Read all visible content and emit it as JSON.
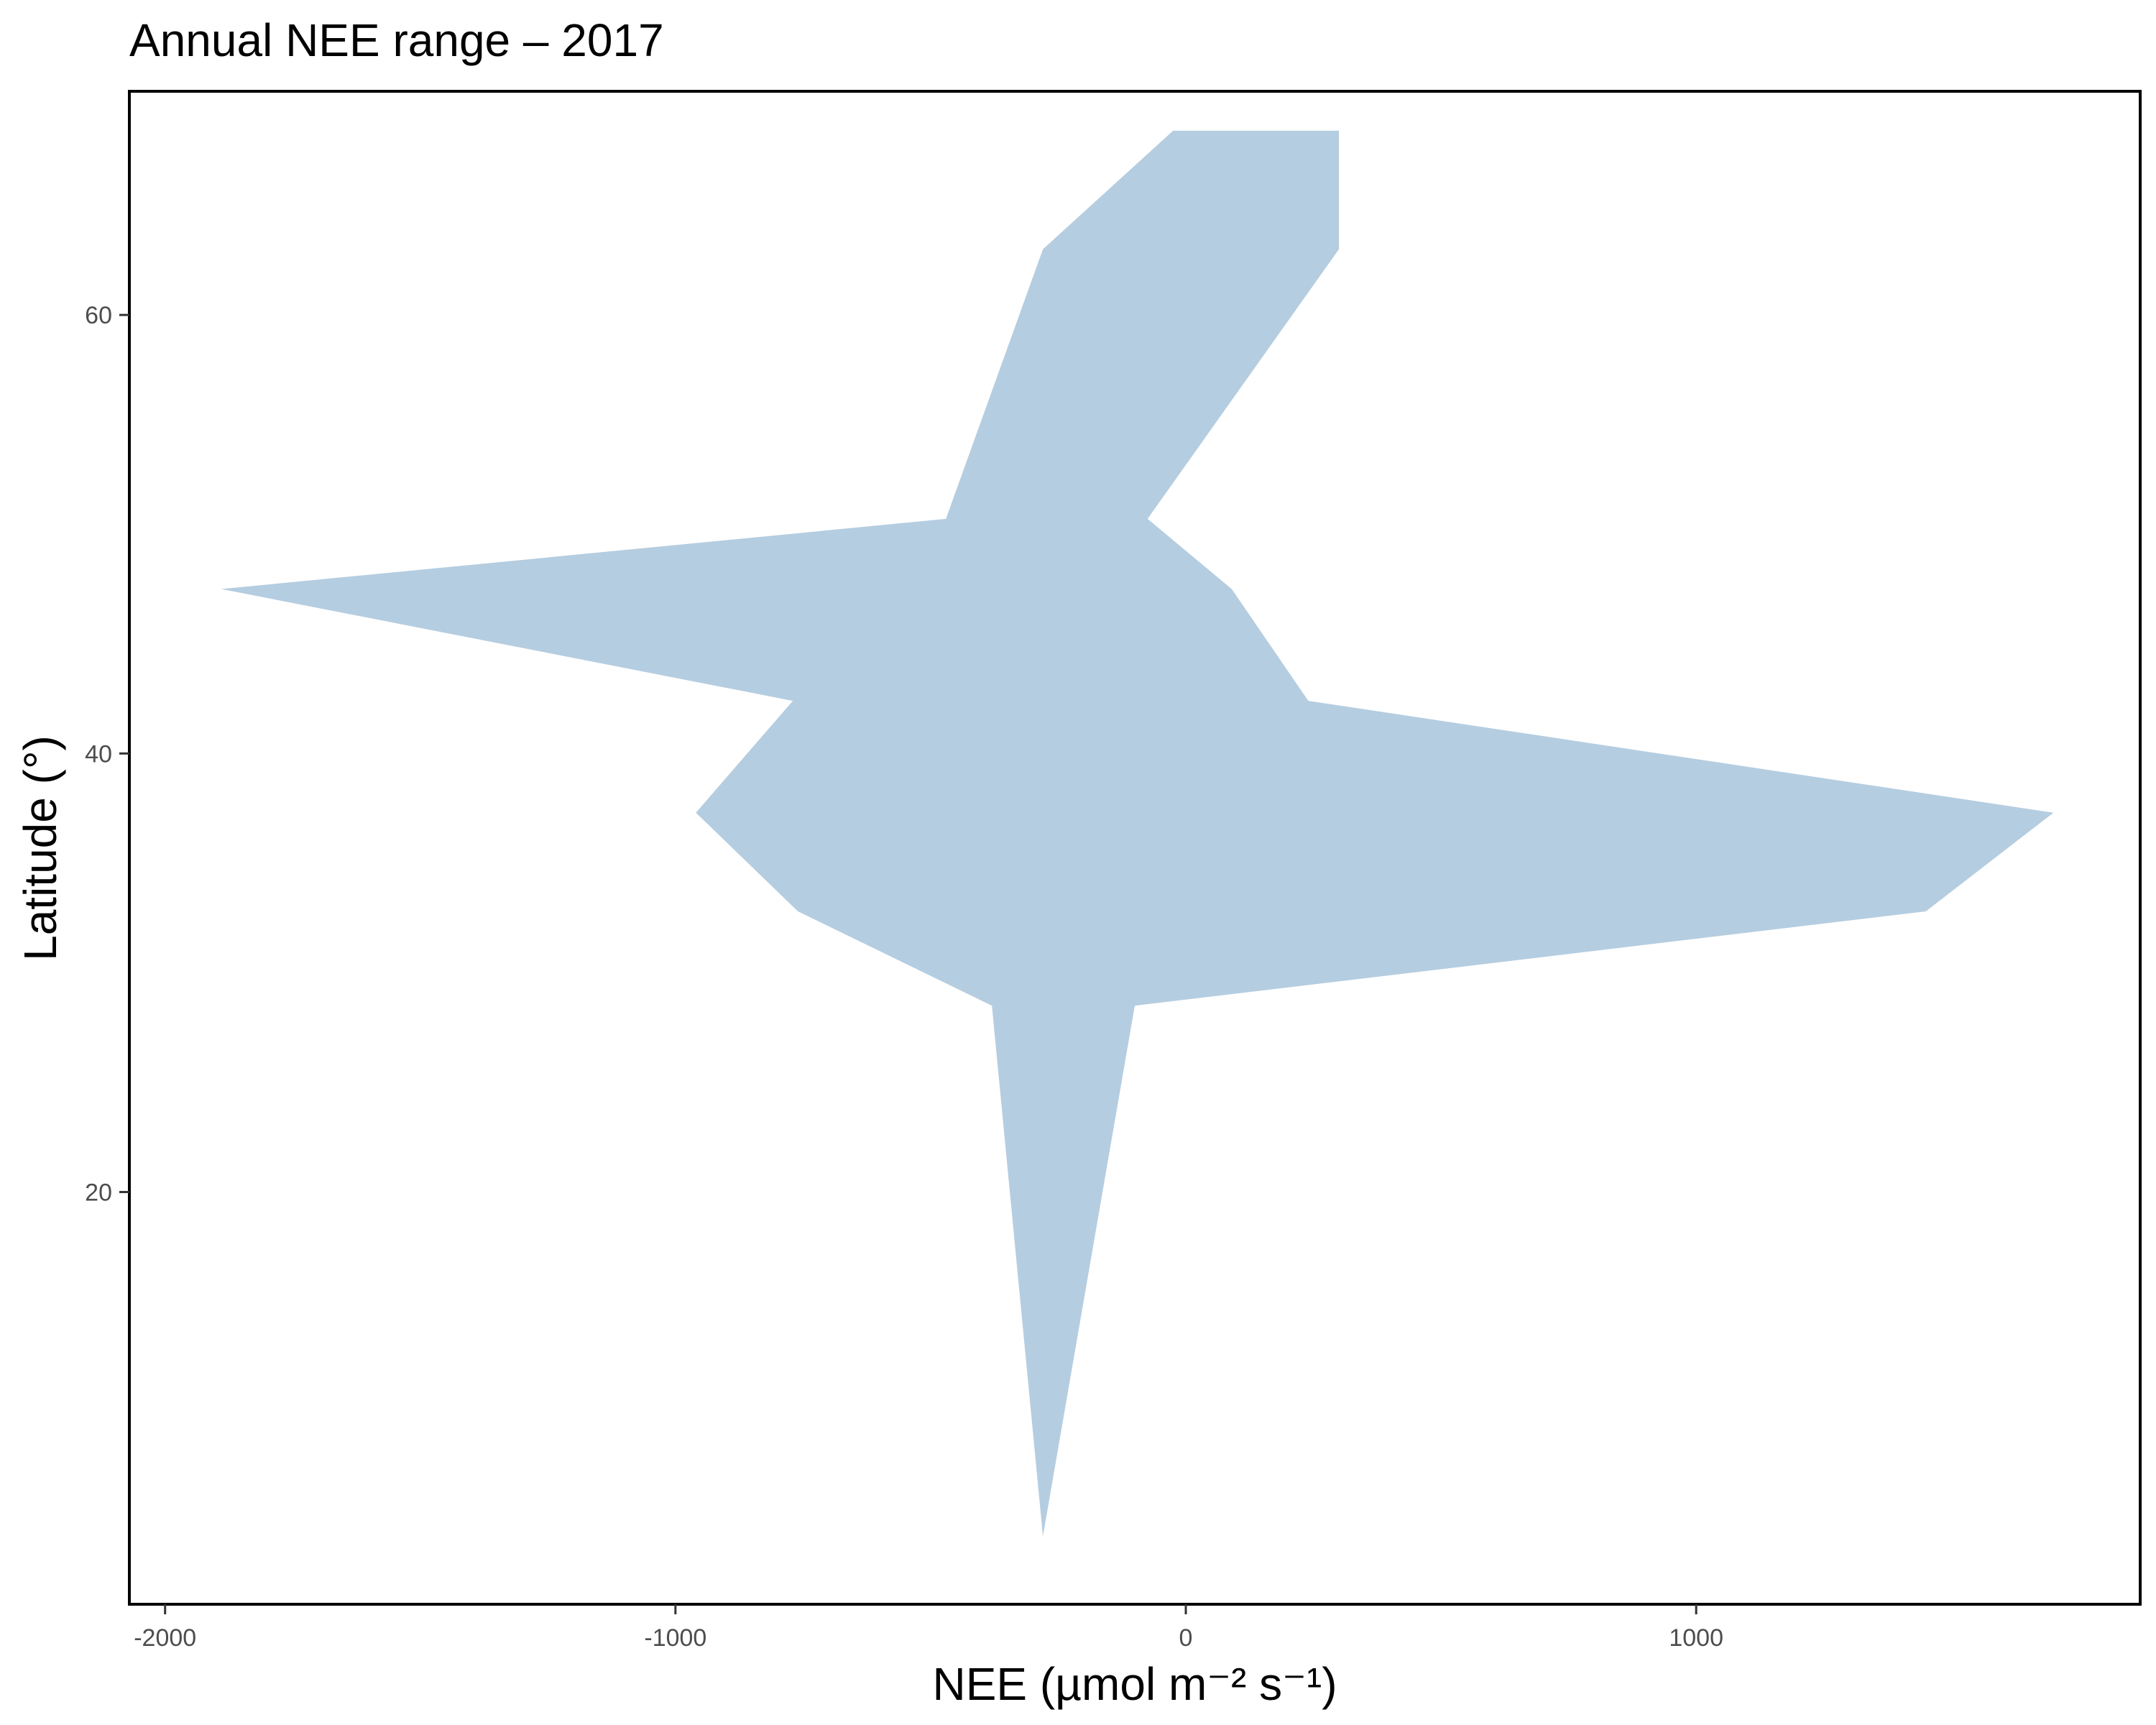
{
  "chart_data": {
    "type": "area",
    "title": "Annual NEE range – 2017",
    "xlabel": "NEE (µmol m⁻² s⁻¹)",
    "ylabel": "Latitude (°)",
    "xlim": [
      -2070,
      1870
    ],
    "ylim": [
      1.2,
      70.2
    ],
    "x_ticks": [
      -2000,
      -1000,
      0,
      1000
    ],
    "x_tick_labels": [
      "-2000",
      "-1000",
      "0",
      "1000"
    ],
    "y_ticks": [
      20,
      40,
      60
    ],
    "y_tick_labels": [
      "20",
      "40",
      "60"
    ],
    "grid": false,
    "fill_color": "#b5cde0",
    "series": [
      {
        "latitude": [
          4.3,
          28.5,
          32.8,
          37.3,
          42.4,
          47.5,
          50.7,
          63.0,
          68.4
        ],
        "min": [
          -280,
          -380,
          -760,
          -960,
          -770,
          -1890,
          -470,
          -280,
          -25
        ],
        "max": [
          -280,
          -100,
          1450,
          1700,
          240,
          90,
          -75,
          300,
          300
        ]
      }
    ]
  }
}
